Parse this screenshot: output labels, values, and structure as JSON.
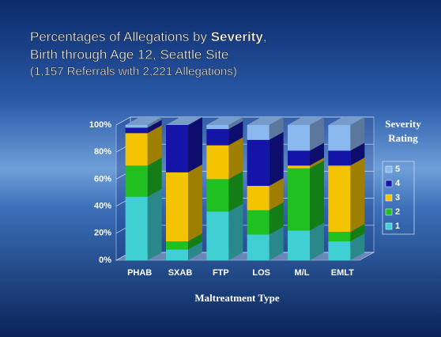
{
  "chart_data": {
    "type": "bar",
    "stacked": true,
    "title": [
      "Percentages of Allegations by ",
      "Severity",
      ","
    ],
    "subtitle": [
      "Birth through Age 12, Seattle Site",
      "(1,157 Referrals with 2,221 Allegations)"
    ],
    "x_label": "Maltreatment Type",
    "legend_title": [
      "Severity",
      "Rating"
    ],
    "categories": [
      "PHAB",
      "SXAB",
      "FTP",
      "LOS",
      "M/L",
      "EMLT"
    ],
    "series": [
      {
        "name": "1",
        "color": "#40d0d4",
        "values": [
          47,
          8,
          36,
          19,
          22,
          14
        ]
      },
      {
        "name": "2",
        "color": "#20c020",
        "values": [
          23,
          6,
          24,
          18,
          46,
          7
        ]
      },
      {
        "name": "3",
        "color": "#f5c400",
        "values": [
          24,
          51,
          25,
          18,
          2,
          49
        ]
      },
      {
        "name": "4",
        "color": "#1414a8",
        "values": [
          4,
          35,
          12,
          34,
          11,
          11
        ]
      },
      {
        "name": "5",
        "color": "#8cb8f0",
        "values": [
          2,
          0,
          3,
          11,
          19,
          19
        ]
      }
    ],
    "ylim": [
      0,
      100
    ],
    "yticks": [
      {
        "value": 0,
        "label": "0%"
      },
      {
        "value": 20,
        "label": "20%"
      },
      {
        "value": 40,
        "label": "40%"
      },
      {
        "value": 60,
        "label": "60%"
      },
      {
        "value": 80,
        "label": "80%"
      },
      {
        "value": 100,
        "label": "100%"
      }
    ],
    "grid": true,
    "legend": "right"
  }
}
